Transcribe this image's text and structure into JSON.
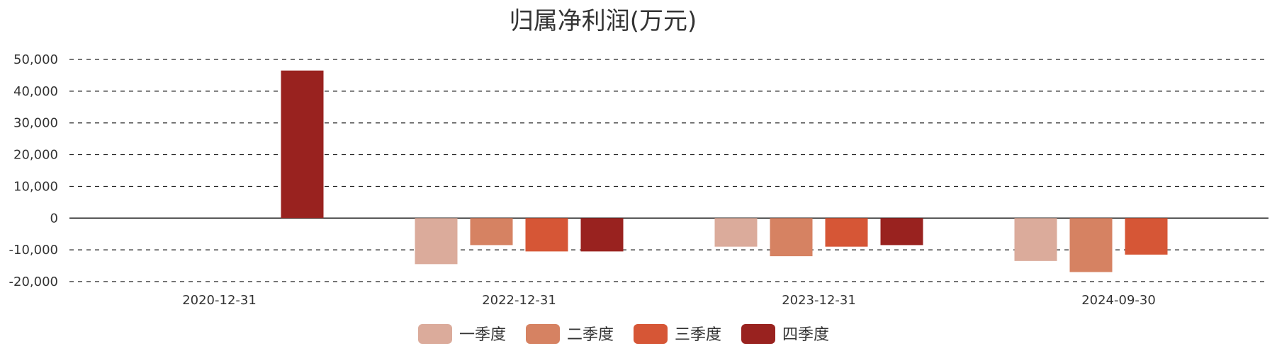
{
  "chart_data": {
    "type": "bar",
    "title": "归属净利润(万元)",
    "categories": [
      "2020-12-31",
      "2022-12-31",
      "2023-12-31",
      "2024-09-30"
    ],
    "series": [
      {
        "name": "一季度",
        "color": "#dbab9b",
        "values": [
          null,
          -14500,
          -9000,
          -13500
        ]
      },
      {
        "name": "二季度",
        "color": "#d68262",
        "values": [
          null,
          -8500,
          -12000,
          -17000
        ]
      },
      {
        "name": "三季度",
        "color": "#d65636",
        "values": [
          null,
          -10500,
          -9000,
          -11500
        ]
      },
      {
        "name": "四季度",
        "color": "#99221f",
        "values": [
          46500,
          -10500,
          -8500,
          null
        ]
      }
    ],
    "y_ticks": [
      "50,000",
      "40,000",
      "30,000",
      "20,000",
      "10,000",
      "0",
      "-10,000",
      "-20,000"
    ],
    "ylim": [
      -20000,
      50000
    ],
    "xlabel": "",
    "ylabel": "",
    "grid": true,
    "legend_position": "bottom-center"
  }
}
